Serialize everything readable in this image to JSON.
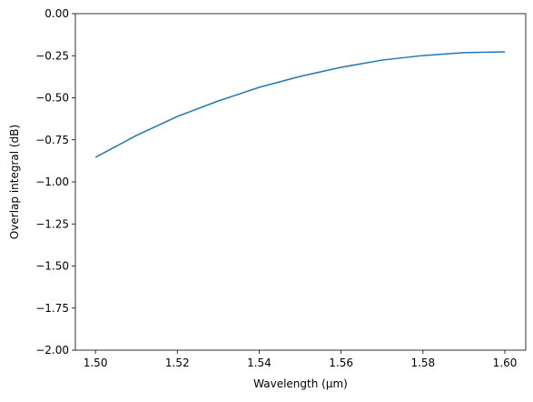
{
  "chart_data": {
    "type": "line",
    "x_label": "Wavelength (μm)",
    "y_label": "Overlap integral (dB)",
    "x": [
      1.5,
      1.51,
      1.52,
      1.53,
      1.54,
      1.55,
      1.56,
      1.57,
      1.58,
      1.59,
      1.6
    ],
    "series": [
      {
        "color": "#1f77b4",
        "values": [
          -0.854,
          -0.724,
          -0.611,
          -0.519,
          -0.438,
          -0.373,
          -0.319,
          -0.276,
          -0.249,
          -0.232,
          -0.227
        ]
      }
    ],
    "xlim": [
      1.4951,
      1.6051
    ],
    "ylim": [
      -2.0,
      0.0
    ],
    "xticks": [
      {
        "value": 1.5,
        "label": "1.50"
      },
      {
        "value": 1.52,
        "label": "1.52"
      },
      {
        "value": 1.54,
        "label": "1.54"
      },
      {
        "value": 1.56,
        "label": "1.56"
      },
      {
        "value": 1.58,
        "label": "1.58"
      },
      {
        "value": 1.6,
        "label": "1.60"
      }
    ],
    "yticks": [
      {
        "value": -2.0,
        "label": "−2.00"
      },
      {
        "value": -1.75,
        "label": "−1.75"
      },
      {
        "value": -1.5,
        "label": "−1.50"
      },
      {
        "value": -1.25,
        "label": "−1.25"
      },
      {
        "value": -1.0,
        "label": "−1.00"
      },
      {
        "value": -0.75,
        "label": "−0.75"
      },
      {
        "value": -0.5,
        "label": "−0.50"
      },
      {
        "value": -0.25,
        "label": "−0.25"
      },
      {
        "value": 0.0,
        "label": "0.00"
      }
    ],
    "grid": false
  }
}
